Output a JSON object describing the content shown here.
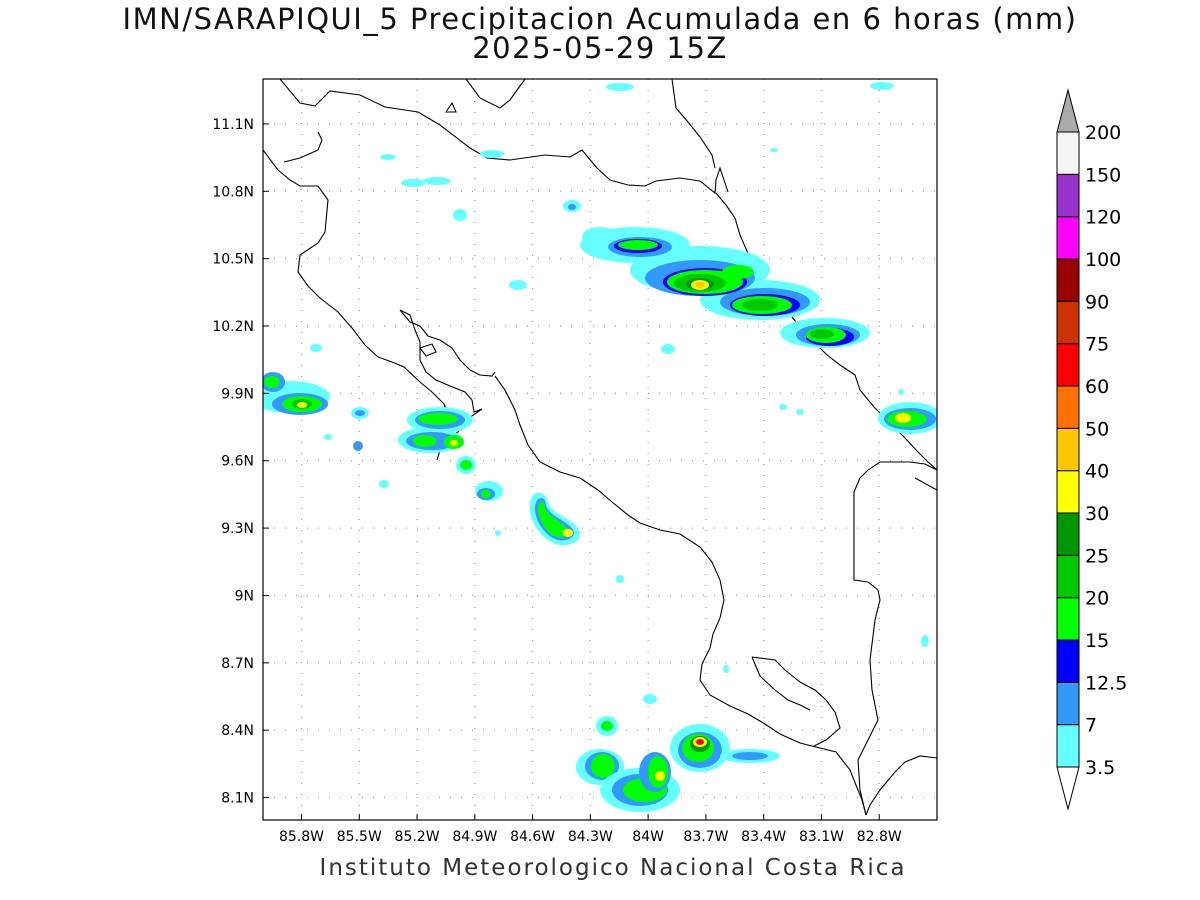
{
  "title": "IMN/SARAPIQUI_5 Precipitacion Acumulada en 6 horas (mm)",
  "subtitle": "2025-05-29 15Z",
  "footer": "Instituto Meteorologico Nacional Costa Rica",
  "axes": {
    "lon_labels": [
      "85.8W",
      "85.5W",
      "85.2W",
      "84.9W",
      "84.6W",
      "84.3W",
      "84W",
      "83.7W",
      "83.4W",
      "83.1W",
      "82.8W"
    ],
    "lat_labels": [
      "11.1N",
      "10.8N",
      "10.5N",
      "10.2N",
      "9.9N",
      "9.6N",
      "9.3N",
      "9N",
      "8.7N",
      "8.4N",
      "8.1N"
    ],
    "lon_values": [
      -85.8,
      -85.5,
      -85.2,
      -84.9,
      -84.6,
      -84.3,
      -84.0,
      -83.7,
      -83.4,
      -83.1,
      -82.8
    ],
    "lat_values": [
      11.1,
      10.8,
      10.5,
      10.2,
      9.9,
      9.6,
      9.3,
      9.0,
      8.7,
      8.4,
      8.1
    ],
    "lon_range": [
      -86.0,
      -82.5
    ],
    "lat_range": [
      8.0,
      11.3
    ],
    "grid": true
  },
  "colorbar": {
    "labels": [
      "3.5",
      "7",
      "12.5",
      "15",
      "20",
      "25",
      "30",
      "40",
      "50",
      "60",
      "75",
      "90",
      "100",
      "120",
      "150",
      "200"
    ],
    "colors": [
      "#66ffff",
      "#3399ff",
      "#0000ff",
      "#00ff00",
      "#00c800",
      "#009600",
      "#ffff00",
      "#ffc800",
      "#ff7000",
      "#ff0000",
      "#cc3300",
      "#990000",
      "#ff00ff",
      "#9933cc",
      "#f5f5f5"
    ],
    "under_color": "#ffffff",
    "over_color": "#aaaaaa"
  }
}
